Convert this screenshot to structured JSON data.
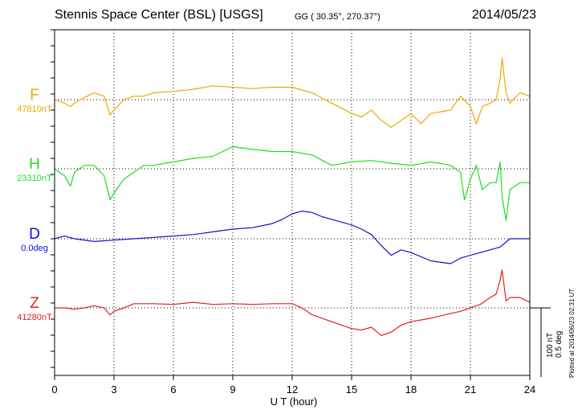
{
  "header": {
    "station": "Stennis Space Center (BSL)  [USGS]",
    "coords": "GG ( 30.35°, 270.37°)",
    "date": "2014/05/23"
  },
  "footer": {
    "plotted": "Plotted at 2014/06/23 02:31  UT",
    "scale_nt": "100 nT",
    "scale_deg": "0.5 deg"
  },
  "chart_data": {
    "type": "line",
    "xlabel": "U T (hour)",
    "xlim": [
      0,
      24
    ],
    "xticks": [
      0,
      3,
      6,
      9,
      12,
      15,
      18,
      21,
      24
    ],
    "grid": true,
    "scale_bar": {
      "nT": 100,
      "deg": 0.5
    },
    "series": [
      {
        "name": "F",
        "baseline": "47810nT",
        "color": "#f0a800",
        "x": [
          0,
          0.5,
          0.8,
          1,
          1.5,
          2,
          2.5,
          2.8,
          3,
          3.5,
          4,
          4.5,
          5,
          6,
          7,
          8,
          9,
          10,
          11,
          12,
          12.5,
          13,
          14,
          15,
          15.5,
          16,
          16.5,
          17,
          17.5,
          18,
          18.5,
          19,
          20,
          20.5,
          21,
          21.3,
          21.6,
          22,
          22.3,
          22.5,
          22.6,
          22.8,
          23,
          23.5,
          24
        ],
        "y": [
          0,
          -5,
          -10,
          -5,
          3,
          10,
          5,
          -22,
          -15,
          0,
          5,
          5,
          10,
          12,
          15,
          20,
          18,
          16,
          18,
          18,
          14,
          10,
          -5,
          -20,
          -25,
          -15,
          -30,
          -40,
          -30,
          -20,
          -35,
          -20,
          -15,
          5,
          -10,
          -35,
          -10,
          -5,
          0,
          30,
          60,
          10,
          -5,
          10,
          5
        ]
      },
      {
        "name": "H",
        "baseline": "23310nT",
        "color": "#22dd22",
        "x": [
          0,
          0.5,
          0.8,
          1,
          1.5,
          2,
          2.5,
          2.8,
          3,
          3.5,
          4,
          4.5,
          5,
          6,
          7,
          8,
          9,
          10,
          11,
          12,
          13,
          14,
          15,
          16,
          17,
          18,
          19,
          20,
          20.5,
          20.7,
          21,
          21.3,
          21.6,
          22,
          22.3,
          22.5,
          22.6,
          22.8,
          23,
          23.5,
          24
        ],
        "y": [
          0,
          -10,
          -25,
          -5,
          5,
          5,
          -10,
          -45,
          -35,
          -15,
          -5,
          5,
          5,
          10,
          15,
          18,
          32,
          28,
          25,
          25,
          20,
          5,
          10,
          12,
          8,
          5,
          10,
          5,
          -5,
          -45,
          -15,
          5,
          -30,
          -20,
          -20,
          10,
          -40,
          -75,
          -30,
          -20,
          -20
        ]
      },
      {
        "name": "D",
        "baseline": "0.0deg",
        "color": "#1111cc",
        "x": [
          0,
          0.5,
          1,
          2,
          3,
          4,
          5,
          6,
          7,
          8,
          9,
          10,
          11,
          11.5,
          12,
          12.5,
          13,
          13.5,
          14,
          15,
          15.5,
          16,
          16.5,
          17,
          17.5,
          18,
          19,
          20,
          20.5,
          21,
          22,
          22.5,
          23,
          24
        ],
        "y": [
          0,
          0.02,
          0,
          -0.02,
          -0.01,
          0,
          0.01,
          0.02,
          0.03,
          0.05,
          0.07,
          0.08,
          0.11,
          0.14,
          0.18,
          0.2,
          0.19,
          0.16,
          0.14,
          0.1,
          0.07,
          0.03,
          -0.05,
          -0.12,
          -0.08,
          -0.1,
          -0.16,
          -0.18,
          -0.14,
          -0.12,
          -0.08,
          -0.06,
          0,
          0
        ]
      },
      {
        "name": "Z",
        "baseline": "41280nT",
        "color": "#dd2222",
        "x": [
          0,
          0.5,
          1,
          1.5,
          2,
          2.5,
          2.8,
          3,
          3.5,
          4,
          5,
          6,
          7,
          8,
          9,
          10,
          11,
          12,
          12.5,
          13,
          14,
          15,
          15.5,
          16,
          16.5,
          17,
          17.5,
          18,
          19,
          20,
          20.5,
          21,
          21.5,
          22,
          22.3,
          22.5,
          22.6,
          22.8,
          23,
          23.5,
          24
        ],
        "y": [
          0,
          0,
          -2,
          0,
          3,
          0,
          -10,
          -5,
          0,
          6,
          6,
          5,
          8,
          5,
          6,
          5,
          6,
          6,
          0,
          -10,
          -20,
          -30,
          -32,
          -28,
          -40,
          -35,
          -25,
          -20,
          -15,
          -8,
          -5,
          0,
          5,
          15,
          20,
          40,
          55,
          10,
          15,
          15,
          8
        ]
      }
    ]
  }
}
